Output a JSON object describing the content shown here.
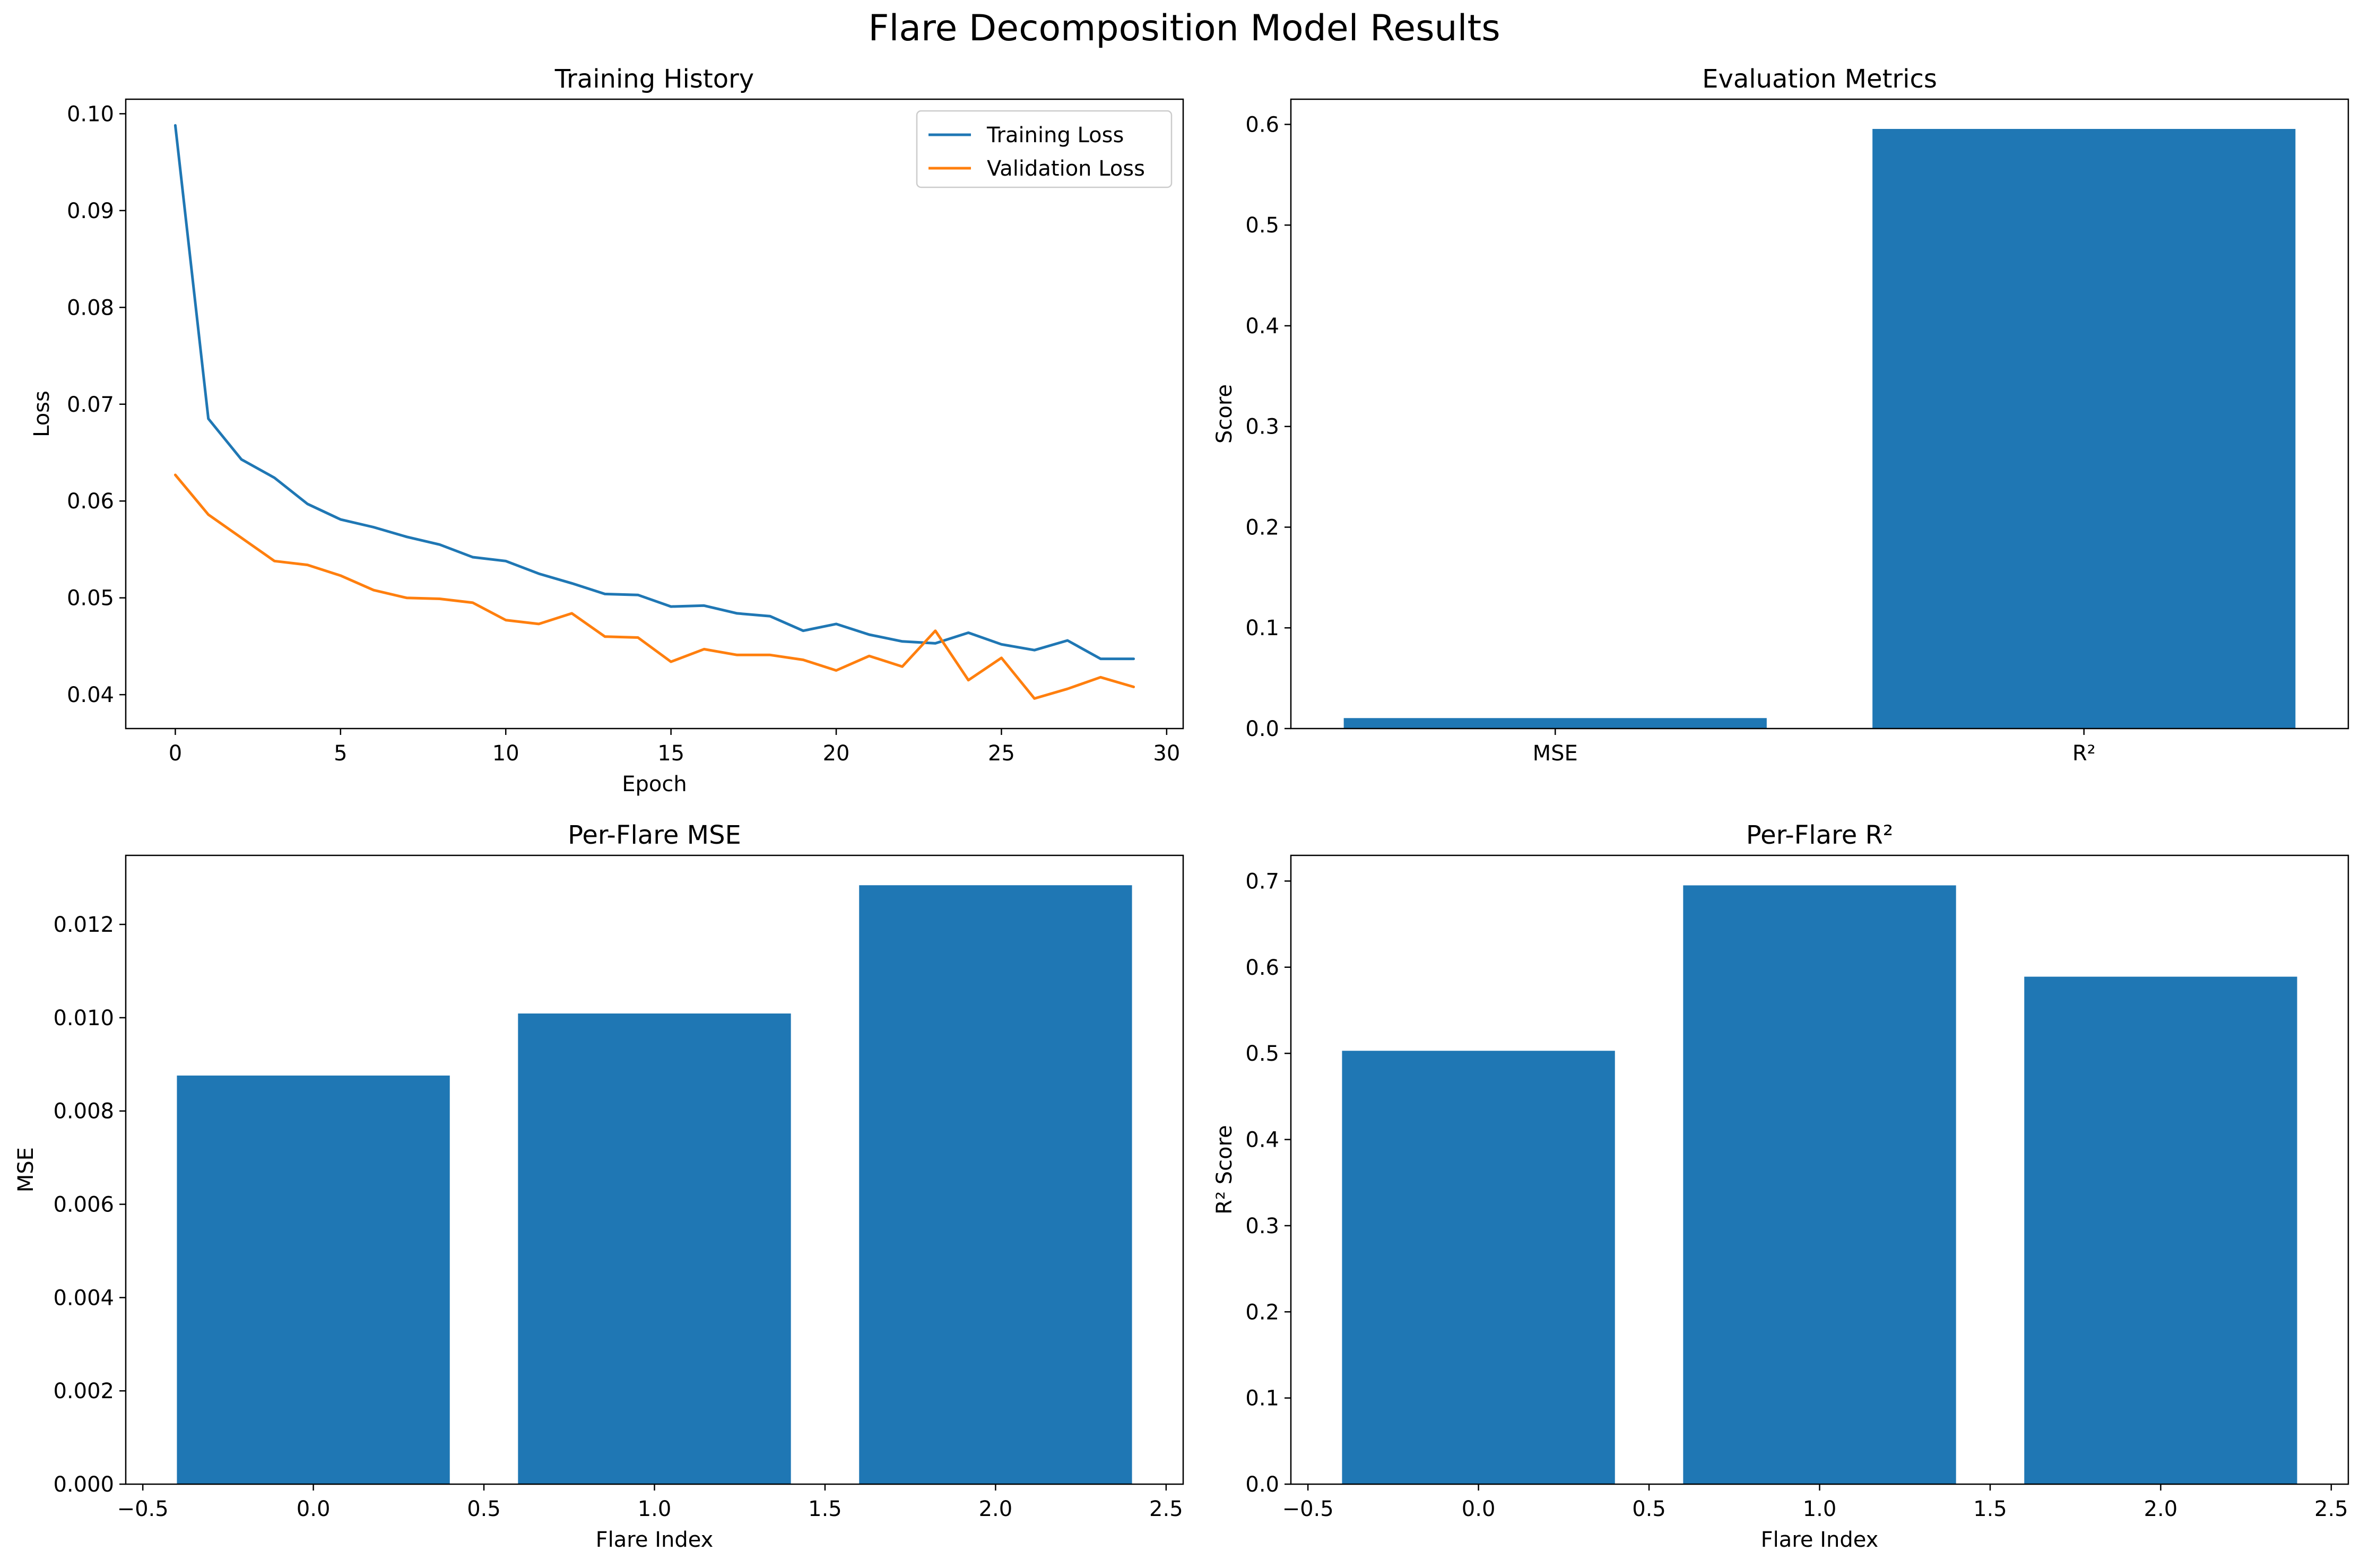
{
  "figure": {
    "title": "Flare Decomposition Model Results"
  },
  "colors": {
    "blue": "#1f77b4",
    "orange": "#ff7f0e"
  },
  "chart_data": [
    {
      "id": "training_history",
      "type": "line",
      "title": "Training History",
      "xlabel": "Epoch",
      "ylabel": "Loss",
      "xlim": [
        -1.5,
        30.5
      ],
      "ylim": [
        0.0365,
        0.1015
      ],
      "xticks": [
        0,
        5,
        10,
        15,
        20,
        25,
        30
      ],
      "xtick_labels": [
        "0",
        "5",
        "10",
        "15",
        "20",
        "25",
        "30"
      ],
      "yticks": [
        0.04,
        0.05,
        0.06,
        0.07,
        0.08,
        0.09,
        0.1
      ],
      "ytick_labels": [
        "0.04",
        "0.05",
        "0.06",
        "0.07",
        "0.08",
        "0.09",
        "0.10"
      ],
      "legend": "top-right",
      "x": [
        0,
        1,
        2,
        3,
        4,
        5,
        6,
        7,
        8,
        9,
        10,
        11,
        12,
        13,
        14,
        15,
        16,
        17,
        18,
        19,
        20,
        21,
        22,
        23,
        24,
        25,
        26,
        27,
        28,
        29
      ],
      "series": [
        {
          "name": "Training Loss",
          "color": "#1f77b4",
          "values": [
            0.0988,
            0.0685,
            0.0643,
            0.0624,
            0.0597,
            0.0581,
            0.0573,
            0.0563,
            0.0555,
            0.0542,
            0.0538,
            0.0525,
            0.0515,
            0.0504,
            0.0503,
            0.0491,
            0.0492,
            0.0484,
            0.0481,
            0.0466,
            0.0473,
            0.0462,
            0.0455,
            0.0453,
            0.0464,
            0.0452,
            0.0446,
            0.0456,
            0.0437,
            0.0437
          ]
        },
        {
          "name": "Validation Loss",
          "color": "#ff7f0e",
          "values": [
            0.0627,
            0.0586,
            0.0562,
            0.0538,
            0.0534,
            0.0523,
            0.0508,
            0.05,
            0.0499,
            0.0495,
            0.0477,
            0.0473,
            0.0484,
            0.046,
            0.0459,
            0.0434,
            0.0447,
            0.0441,
            0.0441,
            0.0436,
            0.0425,
            0.044,
            0.0429,
            0.0466,
            0.0415,
            0.0438,
            0.0396,
            0.0406,
            0.0418,
            0.0408
          ]
        }
      ]
    },
    {
      "id": "evaluation_metrics",
      "type": "bar",
      "title": "Evaluation Metrics",
      "xlabel": "",
      "ylabel": "Score",
      "categories": [
        "MSE",
        "R²"
      ],
      "values": [
        0.0104,
        0.5955
      ],
      "ylim": [
        0,
        0.625
      ],
      "yticks": [
        0,
        0.1,
        0.2,
        0.3,
        0.4,
        0.5,
        0.6
      ],
      "ytick_labels": [
        "0.0",
        "0.1",
        "0.2",
        "0.3",
        "0.4",
        "0.5",
        "0.6"
      ],
      "color": "#1f77b4"
    },
    {
      "id": "per_flare_mse",
      "type": "bar",
      "title": "Per-Flare MSE",
      "xlabel": "Flare Index",
      "ylabel": "MSE",
      "x": [
        0,
        1,
        2
      ],
      "values": [
        0.00876,
        0.01009,
        0.01284
      ],
      "xlim": [
        -0.55,
        2.55
      ],
      "ylim": [
        0,
        0.01348
      ],
      "xticks": [
        -0.5,
        0,
        0.5,
        1,
        1.5,
        2,
        2.5
      ],
      "xtick_labels": [
        "−0.5",
        "0.0",
        "0.5",
        "1.0",
        "1.5",
        "2.0",
        "2.5"
      ],
      "yticks": [
        0,
        0.002,
        0.004,
        0.006,
        0.008,
        0.01,
        0.012
      ],
      "ytick_labels": [
        "0.000",
        "0.002",
        "0.004",
        "0.006",
        "0.008",
        "0.010",
        "0.012"
      ],
      "color": "#1f77b4"
    },
    {
      "id": "per_flare_r2",
      "type": "bar",
      "title": "Per-Flare R²",
      "xlabel": "Flare Index",
      "ylabel": "R² Score",
      "x": [
        0,
        1,
        2
      ],
      "values": [
        0.503,
        0.695,
        0.589
      ],
      "xlim": [
        -0.55,
        2.55
      ],
      "ylim": [
        0,
        0.7298
      ],
      "xticks": [
        -0.5,
        0,
        0.5,
        1,
        1.5,
        2,
        2.5
      ],
      "xtick_labels": [
        "−0.5",
        "0.0",
        "0.5",
        "1.0",
        "1.5",
        "2.0",
        "2.5"
      ],
      "yticks": [
        0,
        0.1,
        0.2,
        0.3,
        0.4,
        0.5,
        0.6,
        0.7
      ],
      "ytick_labels": [
        "0.0",
        "0.1",
        "0.2",
        "0.3",
        "0.4",
        "0.5",
        "0.6",
        "0.7"
      ],
      "color": "#1f77b4"
    }
  ]
}
